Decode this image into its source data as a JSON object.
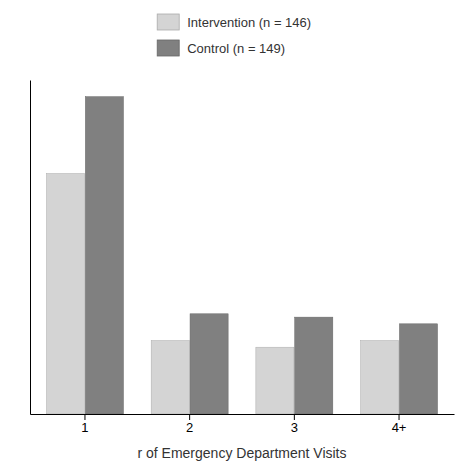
{
  "chart_data": {
    "type": "bar",
    "categories": [
      "1",
      "2",
      "3",
      "4+"
    ],
    "series": [
      {
        "name": "Intervention (n = 146)",
        "color": "#d4d4d4",
        "values": [
          72,
          22,
          20,
          22
        ]
      },
      {
        "name": "Control (n = 149)",
        "color": "#808080",
        "values": [
          95,
          30,
          29,
          27
        ]
      }
    ],
    "x_label": "r of Emergency Department Visits",
    "ylim": [
      0,
      100
    ],
    "grid": false,
    "legend": "top",
    "tick_labels": "x"
  }
}
